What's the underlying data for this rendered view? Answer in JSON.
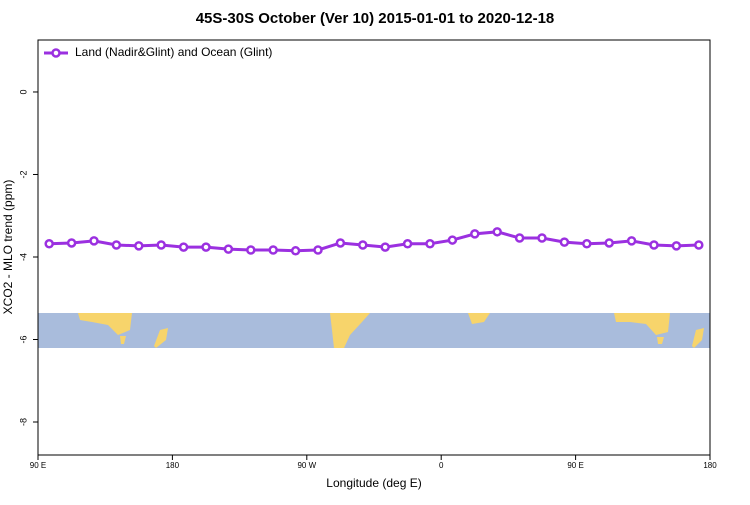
{
  "chart_data": {
    "type": "line",
    "title": "45S-30S October (Ver 10)   2015-01-01 to 2020-12-18",
    "xlabel": "Longitude (deg E)",
    "ylabel": "XCO2 - MLO trend (ppm)",
    "x": [
      97.5,
      112.5,
      127.5,
      142.5,
      157.5,
      172.5,
      187.5,
      202.5,
      217.5,
      232.5,
      247.5,
      262.5,
      277.5,
      292.5,
      307.5,
      322.5,
      337.5,
      352.5,
      367.5,
      382.5,
      397.5,
      412.5,
      427.5,
      442.5,
      457.5,
      472.5,
      487.5,
      502.5,
      517.5,
      532.5
    ],
    "series": [
      {
        "name": "Land (Nadir&Glint) and Ocean (Glint)",
        "color": "#9b30e0",
        "values": [
          -3.68,
          -3.66,
          -3.61,
          -3.71,
          -3.73,
          -3.71,
          -3.76,
          -3.76,
          -3.81,
          -3.83,
          -3.83,
          -3.85,
          -3.83,
          -3.66,
          -3.71,
          -3.76,
          -3.68,
          -3.68,
          -3.59,
          -3.44,
          -3.39,
          -3.54,
          -3.54,
          -3.64,
          -3.68,
          -3.66,
          -3.61,
          -3.71,
          -3.73,
          -3.71
        ]
      }
    ],
    "xlim": [
      90,
      540
    ],
    "xticks": [
      {
        "value": 90,
        "label": "90 E"
      },
      {
        "value": 180,
        "label": "180"
      },
      {
        "value": 270,
        "label": "90 W"
      },
      {
        "value": 360,
        "label": "0"
      },
      {
        "value": 450,
        "label": "90 E"
      },
      {
        "value": 540,
        "label": "180"
      }
    ],
    "ylim": [
      -8.8,
      1.26
    ],
    "yticks": [
      0,
      -2,
      -4,
      -6,
      -8
    ],
    "legend": "top-left"
  }
}
